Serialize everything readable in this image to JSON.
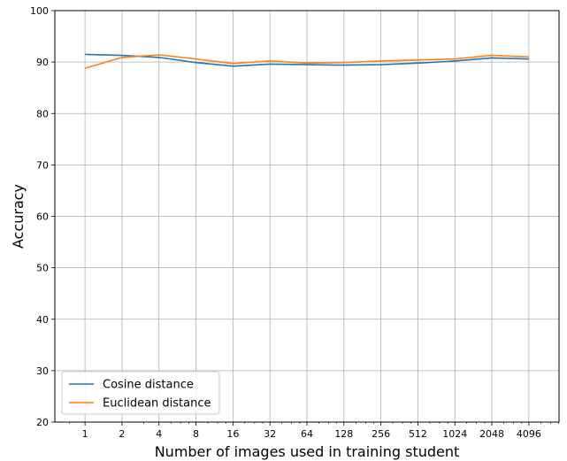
{
  "chart_data": {
    "type": "line",
    "title": "",
    "xlabel": "Number of images used in training student",
    "ylabel": "Accuracy",
    "x_scale": "log2",
    "x": [
      1,
      2,
      4,
      8,
      16,
      32,
      64,
      128,
      256,
      512,
      1024,
      2048,
      4096
    ],
    "x_tick_labels": [
      "1",
      "2",
      "4",
      "8",
      "16",
      "32",
      "64",
      "128",
      "256",
      "512",
      "1024",
      "2048",
      "4096"
    ],
    "ylim": [
      20,
      100
    ],
    "y_ticks": [
      20,
      30,
      40,
      50,
      60,
      70,
      80,
      90,
      100
    ],
    "grid": true,
    "legend_position": "lower-left",
    "series": [
      {
        "name": "Cosine distance",
        "color": "#1f77b4",
        "values": [
          91.5,
          91.3,
          90.9,
          89.9,
          89.2,
          89.6,
          89.5,
          89.4,
          89.5,
          89.8,
          90.2,
          90.8,
          90.6
        ]
      },
      {
        "name": "Euclidean distance",
        "color": "#ff7f0e",
        "values": [
          88.8,
          90.9,
          91.4,
          90.6,
          89.7,
          90.2,
          89.8,
          89.9,
          90.2,
          90.4,
          90.6,
          91.3,
          91.0
        ]
      }
    ]
  }
}
